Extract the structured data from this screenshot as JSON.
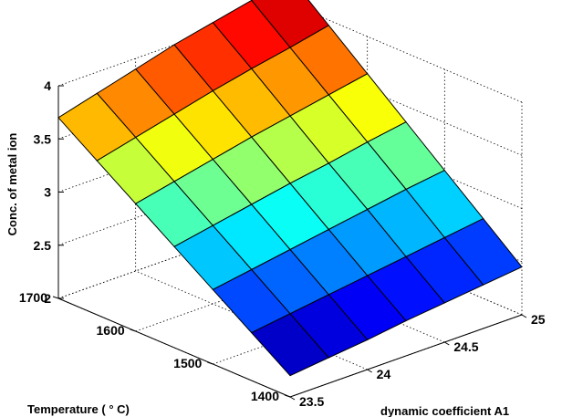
{
  "chart_data": {
    "type": "surface",
    "title": "",
    "xlabel": "dynamic coefficient A1",
    "ylabel": "Temperature ( ° C)",
    "zlabel": "Conc. of metal ion",
    "x_ticks": [
      "23.5",
      "24",
      "24.5",
      "25"
    ],
    "y_ticks": [
      "1400",
      "1500",
      "1600",
      "1700"
    ],
    "z_ticks": [
      "2",
      "2.5",
      "3",
      "3.5",
      "4"
    ],
    "xlim": [
      23.5,
      25
    ],
    "ylim": [
      1400,
      1700
    ],
    "zlim": [
      2,
      4
    ],
    "grid": true,
    "colormap": "jet",
    "surface": {
      "x": [
        23.5,
        23.75,
        24,
        24.25,
        24.5,
        24.75,
        25
      ],
      "y": [
        1400,
        1450,
        1500,
        1550,
        1600,
        1650,
        1700
      ],
      "z_rows": [
        [
          2.2,
          2.24,
          2.28,
          2.33,
          2.37,
          2.41,
          2.45
        ],
        [
          2.45,
          2.5,
          2.55,
          2.6,
          2.65,
          2.7,
          2.75
        ],
        [
          2.7,
          2.76,
          2.82,
          2.88,
          2.94,
          3.0,
          3.05
        ],
        [
          2.95,
          3.02,
          3.09,
          3.16,
          3.22,
          3.29,
          3.35
        ],
        [
          3.2,
          3.28,
          3.36,
          3.44,
          3.51,
          3.58,
          3.65
        ],
        [
          3.45,
          3.54,
          3.63,
          3.72,
          3.8,
          3.87,
          3.95
        ],
        [
          3.7,
          3.8,
          3.9,
          4.0,
          4.08,
          4.16,
          4.25
        ]
      ]
    }
  }
}
